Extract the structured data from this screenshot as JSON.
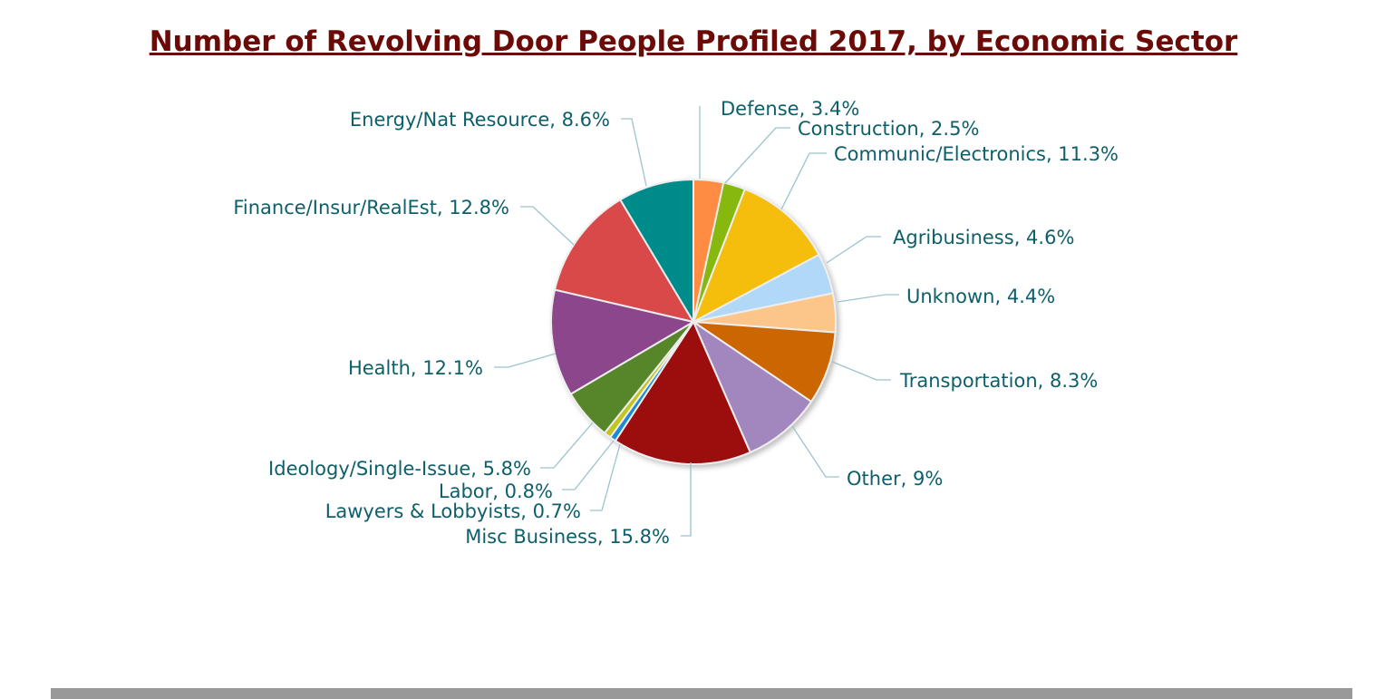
{
  "chart_data": {
    "type": "pie",
    "title": "Number of Revolving Door People Profiled 2017, by Economic Sector",
    "slices": [
      {
        "label": "Defense",
        "value": 3.4,
        "display": "3.4%",
        "color": "#ff8c42"
      },
      {
        "label": "Construction",
        "value": 2.5,
        "display": "2.5%",
        "color": "#86b80a"
      },
      {
        "label": "Communic/Electronics",
        "value": 11.3,
        "display": "11.3%",
        "color": "#f5be10"
      },
      {
        "label": "Agribusiness",
        "value": 4.6,
        "display": "4.6%",
        "color": "#b2d8f7"
      },
      {
        "label": "Unknown",
        "value": 4.4,
        "display": "4.4%",
        "color": "#fcc68a"
      },
      {
        "label": "Transportation",
        "value": 8.3,
        "display": "8.3%",
        "color": "#cc6600"
      },
      {
        "label": "Other",
        "value": 9.0,
        "display": "9%",
        "color": "#a287bf"
      },
      {
        "label": "Misc Business",
        "value": 15.8,
        "display": "15.8%",
        "color": "#9c0a0e"
      },
      {
        "label": "Lawyers & Lobbyists",
        "value": 0.7,
        "display": "0.7%",
        "color": "#1c8ad6"
      },
      {
        "label": "Labor",
        "value": 0.8,
        "display": "0.8%",
        "color": "#c4c41c"
      },
      {
        "label": "Ideology/Single-Issue",
        "value": 5.8,
        "display": "5.8%",
        "color": "#57852a"
      },
      {
        "label": "Health",
        "value": 12.1,
        "display": "12.1%",
        "color": "#8c468c"
      },
      {
        "label": "Finance/Insur/RealEst",
        "value": 12.8,
        "display": "12.8%",
        "color": "#d94848"
      },
      {
        "label": "Energy/Nat Resource",
        "value": 8.6,
        "display": "8.6%",
        "color": "#008b8b"
      }
    ],
    "title_color": "#6b0a06",
    "label_color": "#0d5f6a",
    "legend": "none"
  }
}
